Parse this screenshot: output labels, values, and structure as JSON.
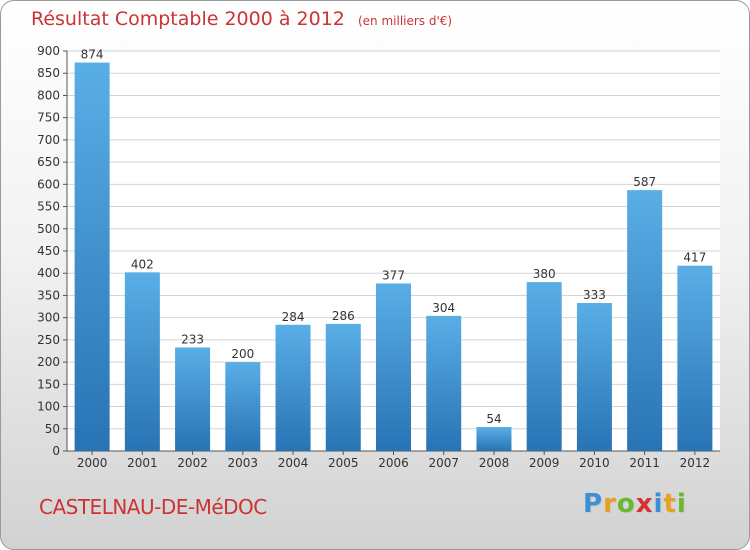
{
  "title": "Résultat Comptable 2000 à 2012",
  "subtitle": "(en milliers d'€)",
  "place": "CASTELNAU-DE-MéDOC",
  "logo": {
    "letters": [
      "P",
      "r",
      "o",
      "x",
      "i",
      "t",
      "i"
    ],
    "colors": [
      "#3a8fd6",
      "#e8a020",
      "#6ab82e",
      "#d93030",
      "#3a8fd6",
      "#e8a020",
      "#6ab82e"
    ]
  },
  "colors": {
    "bar_top": "#5aaee6",
    "bar_bottom": "#2873b4",
    "text_red": "#cc3333",
    "grid": "#d4d4d4"
  },
  "chart_data": {
    "type": "bar",
    "categories": [
      "2000",
      "2001",
      "2002",
      "2003",
      "2004",
      "2005",
      "2006",
      "2007",
      "2008",
      "2009",
      "2010",
      "2011",
      "2012"
    ],
    "values": [
      874,
      402,
      233,
      200,
      284,
      286,
      377,
      304,
      54,
      380,
      333,
      587,
      417
    ],
    "ylim": [
      0,
      900
    ],
    "yticks": [
      0,
      50,
      100,
      150,
      200,
      250,
      300,
      350,
      400,
      450,
      500,
      550,
      600,
      650,
      700,
      750,
      800,
      850,
      900
    ],
    "grid": true,
    "data_labels": true
  }
}
